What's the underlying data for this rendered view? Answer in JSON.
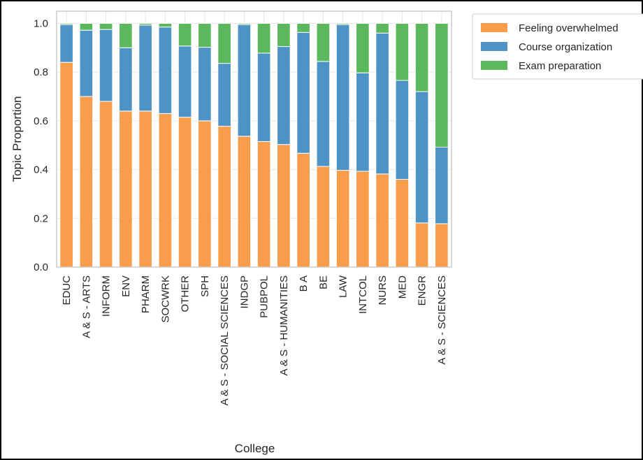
{
  "chart_data": {
    "type": "bar",
    "stacked": true,
    "title": "",
    "xlabel": "College",
    "ylabel": "Topic Proportion",
    "ylim": [
      0,
      1.05
    ],
    "yticks": [
      "0.0",
      "0.2",
      "0.4",
      "0.6",
      "0.8",
      "1.0"
    ],
    "grid": true,
    "legend_position": "top-right outside",
    "categories": [
      "EDUC",
      "A & S - ARTS",
      "INFORM",
      "ENV",
      "PHARM",
      "SOCWRK",
      "OTHER",
      "SPH",
      "A & S - SOCIAL SCIENCES",
      "INDGP",
      "PUBPOL",
      "A & S - HUMANITIES",
      "B A",
      "BE",
      "LAW",
      "INTCOL",
      "NURS",
      "MED",
      "ENGR",
      "A & S - SCIENCES"
    ],
    "series": [
      {
        "name": "Feeling overwhelmed",
        "color": "#f79d4c",
        "values": [
          0.84,
          0.7,
          0.68,
          0.64,
          0.64,
          0.63,
          0.615,
          0.6,
          0.578,
          0.537,
          0.515,
          0.503,
          0.467,
          0.413,
          0.397,
          0.393,
          0.382,
          0.36,
          0.181,
          0.178
        ]
      },
      {
        "name": "Course organization",
        "color": "#4e93c6",
        "values": [
          0.155,
          0.272,
          0.295,
          0.26,
          0.353,
          0.355,
          0.292,
          0.302,
          0.258,
          0.458,
          0.363,
          0.402,
          0.496,
          0.431,
          0.598,
          0.404,
          0.578,
          0.406,
          0.539,
          0.314
        ]
      },
      {
        "name": "Exam preparation",
        "color": "#5cb85c",
        "values": [
          0.005,
          0.028,
          0.025,
          0.1,
          0.007,
          0.015,
          0.093,
          0.098,
          0.164,
          0.005,
          0.122,
          0.095,
          0.037,
          0.156,
          0.005,
          0.203,
          0.04,
          0.234,
          0.28,
          0.508
        ]
      }
    ]
  }
}
